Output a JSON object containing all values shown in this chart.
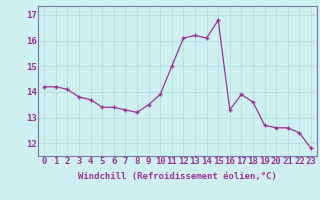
{
  "x": [
    0,
    1,
    2,
    3,
    4,
    5,
    6,
    7,
    8,
    9,
    10,
    11,
    12,
    13,
    14,
    15,
    16,
    17,
    18,
    19,
    20,
    21,
    22,
    23
  ],
  "y": [
    14.2,
    14.2,
    14.1,
    13.8,
    13.7,
    13.4,
    13.4,
    13.3,
    13.2,
    13.5,
    13.9,
    15.0,
    16.1,
    16.2,
    16.1,
    16.8,
    13.3,
    13.9,
    13.6,
    12.7,
    12.6,
    12.6,
    12.4,
    11.8
  ],
  "line_color": "#993399",
  "marker": "+",
  "marker_size": 3.5,
  "bg_color": "#cff0f0",
  "grid_color": "#aadddd",
  "xlabel": "Windchill (Refroidissement éolien,°C)",
  "xlabel_fontsize": 6.5,
  "xtick_labels": [
    "0",
    "1",
    "2",
    "3",
    "4",
    "5",
    "6",
    "7",
    "8",
    "9",
    "10",
    "11",
    "12",
    "13",
    "14",
    "15",
    "16",
    "17",
    "18",
    "19",
    "20",
    "21",
    "22",
    "23"
  ],
  "ytick_labels": [
    "12",
    "13",
    "14",
    "15",
    "16",
    "17"
  ],
  "yticks": [
    12,
    13,
    14,
    15,
    16,
    17
  ],
  "ylim": [
    11.5,
    17.35
  ],
  "xlim": [
    -0.5,
    23.5
  ],
  "tick_fontsize": 6.5,
  "spine_color": "#7777aa",
  "text_color": "#993399"
}
